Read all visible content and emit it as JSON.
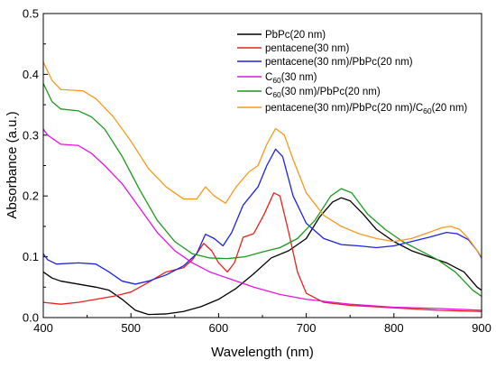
{
  "chart_data": {
    "type": "line",
    "xlabel": "Wavelength (nm)",
    "ylabel": "Absorbance (a.u.)",
    "xlim": [
      400,
      900
    ],
    "ylim": [
      0,
      0.5
    ],
    "xticks": [
      400,
      500,
      600,
      700,
      800,
      900
    ],
    "yticks": [
      0.0,
      0.1,
      0.2,
      0.3,
      0.4,
      0.5
    ],
    "grid": false,
    "legend_position": "top-right",
    "series": [
      {
        "name": "PbPc(20 nm)",
        "color": "#000000",
        "points": [
          [
            400,
            0.075
          ],
          [
            410,
            0.065
          ],
          [
            420,
            0.06
          ],
          [
            440,
            0.055
          ],
          [
            460,
            0.05
          ],
          [
            475,
            0.045
          ],
          [
            490,
            0.03
          ],
          [
            505,
            0.012
          ],
          [
            520,
            0.005
          ],
          [
            540,
            0.006
          ],
          [
            560,
            0.01
          ],
          [
            580,
            0.018
          ],
          [
            600,
            0.03
          ],
          [
            620,
            0.048
          ],
          [
            640,
            0.072
          ],
          [
            660,
            0.098
          ],
          [
            680,
            0.11
          ],
          [
            700,
            0.13
          ],
          [
            715,
            0.165
          ],
          [
            730,
            0.19
          ],
          [
            740,
            0.197
          ],
          [
            750,
            0.192
          ],
          [
            765,
            0.17
          ],
          [
            780,
            0.145
          ],
          [
            800,
            0.125
          ],
          [
            820,
            0.11
          ],
          [
            840,
            0.1
          ],
          [
            860,
            0.09
          ],
          [
            880,
            0.075
          ],
          [
            895,
            0.05
          ],
          [
            900,
            0.045
          ]
        ]
      },
      {
        "name": "pentacene(30 nm)",
        "legend_text": "pentacene(30 nm)",
        "color": "#e8211d",
        "points": [
          [
            400,
            0.025
          ],
          [
            420,
            0.022
          ],
          [
            440,
            0.025
          ],
          [
            460,
            0.03
          ],
          [
            480,
            0.035
          ],
          [
            500,
            0.042
          ],
          [
            520,
            0.058
          ],
          [
            540,
            0.075
          ],
          [
            560,
            0.082
          ],
          [
            570,
            0.095
          ],
          [
            583,
            0.122
          ],
          [
            592,
            0.11
          ],
          [
            600,
            0.09
          ],
          [
            610,
            0.075
          ],
          [
            618,
            0.09
          ],
          [
            628,
            0.132
          ],
          [
            640,
            0.138
          ],
          [
            652,
            0.17
          ],
          [
            663,
            0.205
          ],
          [
            670,
            0.2
          ],
          [
            680,
            0.14
          ],
          [
            690,
            0.075
          ],
          [
            700,
            0.04
          ],
          [
            720,
            0.025
          ],
          [
            750,
            0.02
          ],
          [
            800,
            0.016
          ],
          [
            850,
            0.012
          ],
          [
            900,
            0.01
          ]
        ]
      },
      {
        "name": "pentacene(30 nm)/PbPc(20 nm)",
        "color": "#1d22e0",
        "points": [
          [
            400,
            0.105
          ],
          [
            405,
            0.095
          ],
          [
            415,
            0.088
          ],
          [
            440,
            0.09
          ],
          [
            460,
            0.088
          ],
          [
            475,
            0.075
          ],
          [
            490,
            0.06
          ],
          [
            505,
            0.055
          ],
          [
            520,
            0.06
          ],
          [
            540,
            0.07
          ],
          [
            560,
            0.085
          ],
          [
            575,
            0.105
          ],
          [
            585,
            0.137
          ],
          [
            595,
            0.13
          ],
          [
            605,
            0.118
          ],
          [
            615,
            0.14
          ],
          [
            628,
            0.185
          ],
          [
            645,
            0.215
          ],
          [
            655,
            0.25
          ],
          [
            665,
            0.277
          ],
          [
            673,
            0.265
          ],
          [
            685,
            0.2
          ],
          [
            700,
            0.155
          ],
          [
            720,
            0.13
          ],
          [
            740,
            0.12
          ],
          [
            760,
            0.118
          ],
          [
            780,
            0.115
          ],
          [
            800,
            0.118
          ],
          [
            820,
            0.125
          ],
          [
            840,
            0.132
          ],
          [
            860,
            0.14
          ],
          [
            872,
            0.138
          ],
          [
            885,
            0.128
          ],
          [
            895,
            0.11
          ],
          [
            900,
            0.098
          ]
        ]
      },
      {
        "name": "C60(30 nm)",
        "legend_base": "C",
        "legend_sub": "60",
        "legend_rest": "(30 nm)",
        "color": "#e614e0",
        "points": [
          [
            400,
            0.31
          ],
          [
            405,
            0.3
          ],
          [
            420,
            0.285
          ],
          [
            440,
            0.283
          ],
          [
            455,
            0.27
          ],
          [
            470,
            0.25
          ],
          [
            490,
            0.22
          ],
          [
            510,
            0.18
          ],
          [
            530,
            0.14
          ],
          [
            550,
            0.11
          ],
          [
            570,
            0.09
          ],
          [
            590,
            0.075
          ],
          [
            610,
            0.065
          ],
          [
            640,
            0.05
          ],
          [
            670,
            0.038
          ],
          [
            700,
            0.03
          ],
          [
            750,
            0.022
          ],
          [
            800,
            0.017
          ],
          [
            850,
            0.015
          ],
          [
            900,
            0.012
          ]
        ]
      },
      {
        "name": "C60(30 nm)/PbPc(20 nm)",
        "legend_base": "C",
        "legend_sub": "60",
        "legend_rest": "(30 nm)/PbPc(20 nm)",
        "color": "#1a9a1a",
        "points": [
          [
            400,
            0.385
          ],
          [
            410,
            0.355
          ],
          [
            420,
            0.343
          ],
          [
            440,
            0.34
          ],
          [
            455,
            0.33
          ],
          [
            470,
            0.31
          ],
          [
            490,
            0.265
          ],
          [
            510,
            0.21
          ],
          [
            530,
            0.16
          ],
          [
            550,
            0.125
          ],
          [
            570,
            0.105
          ],
          [
            590,
            0.098
          ],
          [
            610,
            0.097
          ],
          [
            630,
            0.1
          ],
          [
            650,
            0.108
          ],
          [
            670,
            0.115
          ],
          [
            690,
            0.13
          ],
          [
            710,
            0.16
          ],
          [
            728,
            0.2
          ],
          [
            740,
            0.212
          ],
          [
            752,
            0.205
          ],
          [
            770,
            0.17
          ],
          [
            790,
            0.145
          ],
          [
            810,
            0.125
          ],
          [
            830,
            0.11
          ],
          [
            850,
            0.095
          ],
          [
            870,
            0.075
          ],
          [
            890,
            0.045
          ],
          [
            900,
            0.035
          ]
        ]
      },
      {
        "name": "pentacene(30 nm)/PbPc(20 nm)/C60(20 nm)",
        "legend_base": "pentacene(30 nm)/PbPc(20 nm)/C",
        "legend_sub": "60",
        "legend_rest": "(20 nm)",
        "color": "#f59a1b",
        "points": [
          [
            400,
            0.42
          ],
          [
            410,
            0.39
          ],
          [
            420,
            0.375
          ],
          [
            445,
            0.373
          ],
          [
            460,
            0.36
          ],
          [
            480,
            0.33
          ],
          [
            500,
            0.29
          ],
          [
            520,
            0.245
          ],
          [
            540,
            0.215
          ],
          [
            560,
            0.195
          ],
          [
            575,
            0.195
          ],
          [
            585,
            0.215
          ],
          [
            595,
            0.2
          ],
          [
            608,
            0.188
          ],
          [
            620,
            0.215
          ],
          [
            635,
            0.24
          ],
          [
            645,
            0.25
          ],
          [
            655,
            0.285
          ],
          [
            665,
            0.311
          ],
          [
            675,
            0.3
          ],
          [
            685,
            0.26
          ],
          [
            700,
            0.205
          ],
          [
            720,
            0.168
          ],
          [
            740,
            0.15
          ],
          [
            760,
            0.138
          ],
          [
            780,
            0.13
          ],
          [
            800,
            0.125
          ],
          [
            820,
            0.13
          ],
          [
            840,
            0.14
          ],
          [
            855,
            0.148
          ],
          [
            865,
            0.15
          ],
          [
            875,
            0.145
          ],
          [
            885,
            0.13
          ],
          [
            895,
            0.11
          ],
          [
            900,
            0.1
          ]
        ]
      }
    ]
  }
}
